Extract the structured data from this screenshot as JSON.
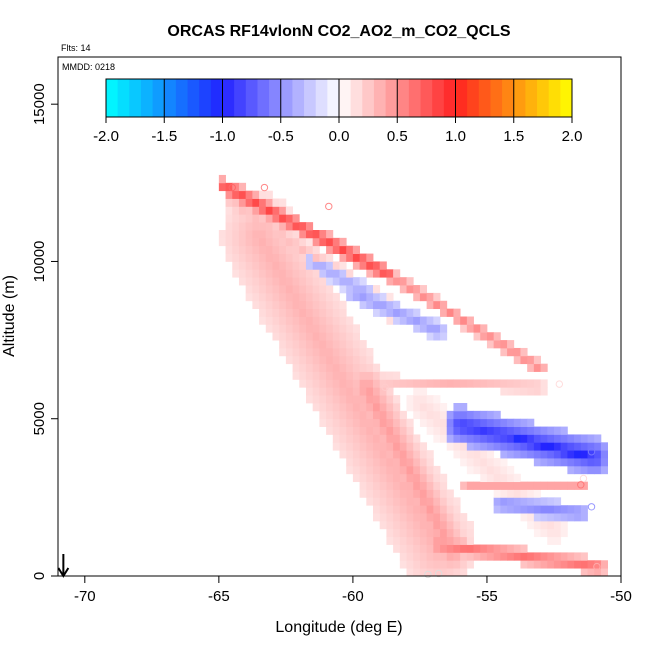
{
  "chart_data": {
    "type": "heatmap",
    "title": "ORCAS RF14vlonN CO2_AO2_m_CO2_QCLS",
    "notes": [
      "Flts: 14",
      "MMDD: 0218"
    ],
    "xlabel": "Longitude (deg E)",
    "ylabel": "Altitude (m)",
    "xlim": [
      -71,
      -50
    ],
    "ylim": [
      0,
      16500
    ],
    "xticks": [
      -70,
      -65,
      -60,
      -55,
      -50
    ],
    "yticks": [
      0,
      5000,
      10000,
      15000
    ],
    "grid": false,
    "colorbar": {
      "placement": "top-inside",
      "range": [
        -2.0,
        2.0
      ],
      "ticks": [
        "-2.0",
        "-1.5",
        "-1.0",
        "-0.5",
        "0.0",
        "0.5",
        "1.0",
        "1.5",
        "2.0"
      ],
      "stops": [
        {
          "v": -2.0,
          "color": "#00ffff"
        },
        {
          "v": -1.0,
          "color": "#2222ff"
        },
        {
          "v": 0.0,
          "color": "#ffffff"
        },
        {
          "v": 1.0,
          "color": "#ff2222"
        },
        {
          "v": 2.0,
          "color": "#ffff00"
        }
      ]
    },
    "cell_size": {
      "lon": 0.25,
      "alt": 250
    },
    "bands": [
      {
        "name": "upper-outer-edge",
        "p0": [
          -64.8,
          12400
        ],
        "p1": [
          -58.7,
          9600
        ],
        "half_width": 260,
        "value": 0.85
      },
      {
        "name": "upper-outer-edge-2",
        "p0": [
          -58.7,
          9600
        ],
        "p1": [
          -53.0,
          6600
        ],
        "half_width": 220,
        "value": 0.55
      },
      {
        "name": "upper-inner-edge",
        "p0": [
          -64.5,
          11900
        ],
        "p1": [
          -58.5,
          8400
        ],
        "half_width": 350,
        "value": 0.3
      },
      {
        "name": "upper-blue-1",
        "p0": [
          -61.5,
          10000
        ],
        "p1": [
          -59.5,
          9000
        ],
        "half_width": 300,
        "value": -0.4
      },
      {
        "name": "upper-blue-2",
        "p0": [
          -60.0,
          9000
        ],
        "p1": [
          -56.8,
          7800
        ],
        "half_width": 300,
        "value": -0.45
      },
      {
        "name": "mid-pink-line",
        "p0": [
          -61.0,
          6300
        ],
        "p1": [
          -53.0,
          6000
        ],
        "half_width": 180,
        "value": 0.35
      },
      {
        "name": "mid-blue",
        "p0": [
          -56.0,
          4800
        ],
        "p1": [
          -51.0,
          3800
        ],
        "half_width": 600,
        "value": -0.9
      },
      {
        "name": "mid-blue-core",
        "p0": [
          -54.0,
          4400
        ],
        "p1": [
          -51.2,
          3800
        ],
        "half_width": 350,
        "value": -1.05
      },
      {
        "name": "right-blue-column",
        "p0": [
          -51.0,
          4000
        ],
        "p1": [
          -51.0,
          2100
        ],
        "half_width": 120,
        "value": -1.15
      },
      {
        "name": "red-horizontal",
        "p0": [
          -55.8,
          2900
        ],
        "p1": [
          -51.3,
          2900
        ],
        "half_width": 150,
        "value": 0.45
      },
      {
        "name": "lower-blue",
        "p0": [
          -54.5,
          2300
        ],
        "p1": [
          -51.5,
          2000
        ],
        "half_width": 300,
        "value": -0.55
      },
      {
        "name": "bottom-red",
        "p0": [
          -56.8,
          1000
        ],
        "p1": [
          -50.8,
          300
        ],
        "half_width": 260,
        "value": 0.65
      },
      {
        "name": "diag-left",
        "p0": [
          -63.5,
          10800
        ],
        "p1": [
          -56.8,
          900
        ],
        "half_width": 1400,
        "value": 0.35
      },
      {
        "name": "diag-right",
        "p0": [
          -59.5,
          6000
        ],
        "p1": [
          -56.3,
          800
        ],
        "half_width": 700,
        "value": 0.45
      },
      {
        "name": "diag-upper-right",
        "p0": [
          -57.5,
          5500
        ],
        "p1": [
          -52.5,
          1500
        ],
        "half_width": 500,
        "value": 0.15
      }
    ],
    "points": [
      {
        "lon": -64.5,
        "alt": 12350,
        "color": "#ff6666"
      },
      {
        "lon": -63.3,
        "alt": 12350,
        "color": "#ff8888"
      },
      {
        "lon": -60.9,
        "alt": 11750,
        "color": "#ff8888"
      },
      {
        "lon": -58.8,
        "alt": 6000,
        "color": "#ffcccc"
      },
      {
        "lon": -52.3,
        "alt": 6100,
        "color": "#ffdddd"
      },
      {
        "lon": -51.1,
        "alt": 3950,
        "color": "#7777ff"
      },
      {
        "lon": -51.4,
        "alt": 3100,
        "color": "#ffdddd"
      },
      {
        "lon": -51.5,
        "alt": 2900,
        "color": "#ff7777"
      },
      {
        "lon": -51.1,
        "alt": 2200,
        "color": "#9999ff"
      },
      {
        "lon": -57.2,
        "alt": 50,
        "color": "#dddddd"
      },
      {
        "lon": -56.8,
        "alt": 80,
        "color": "#dddddd"
      },
      {
        "lon": -50.9,
        "alt": 300,
        "color": "#ffaaaa"
      }
    ],
    "marker": {
      "type": "down-arrow",
      "lon": -70.8,
      "alt": 0
    }
  }
}
